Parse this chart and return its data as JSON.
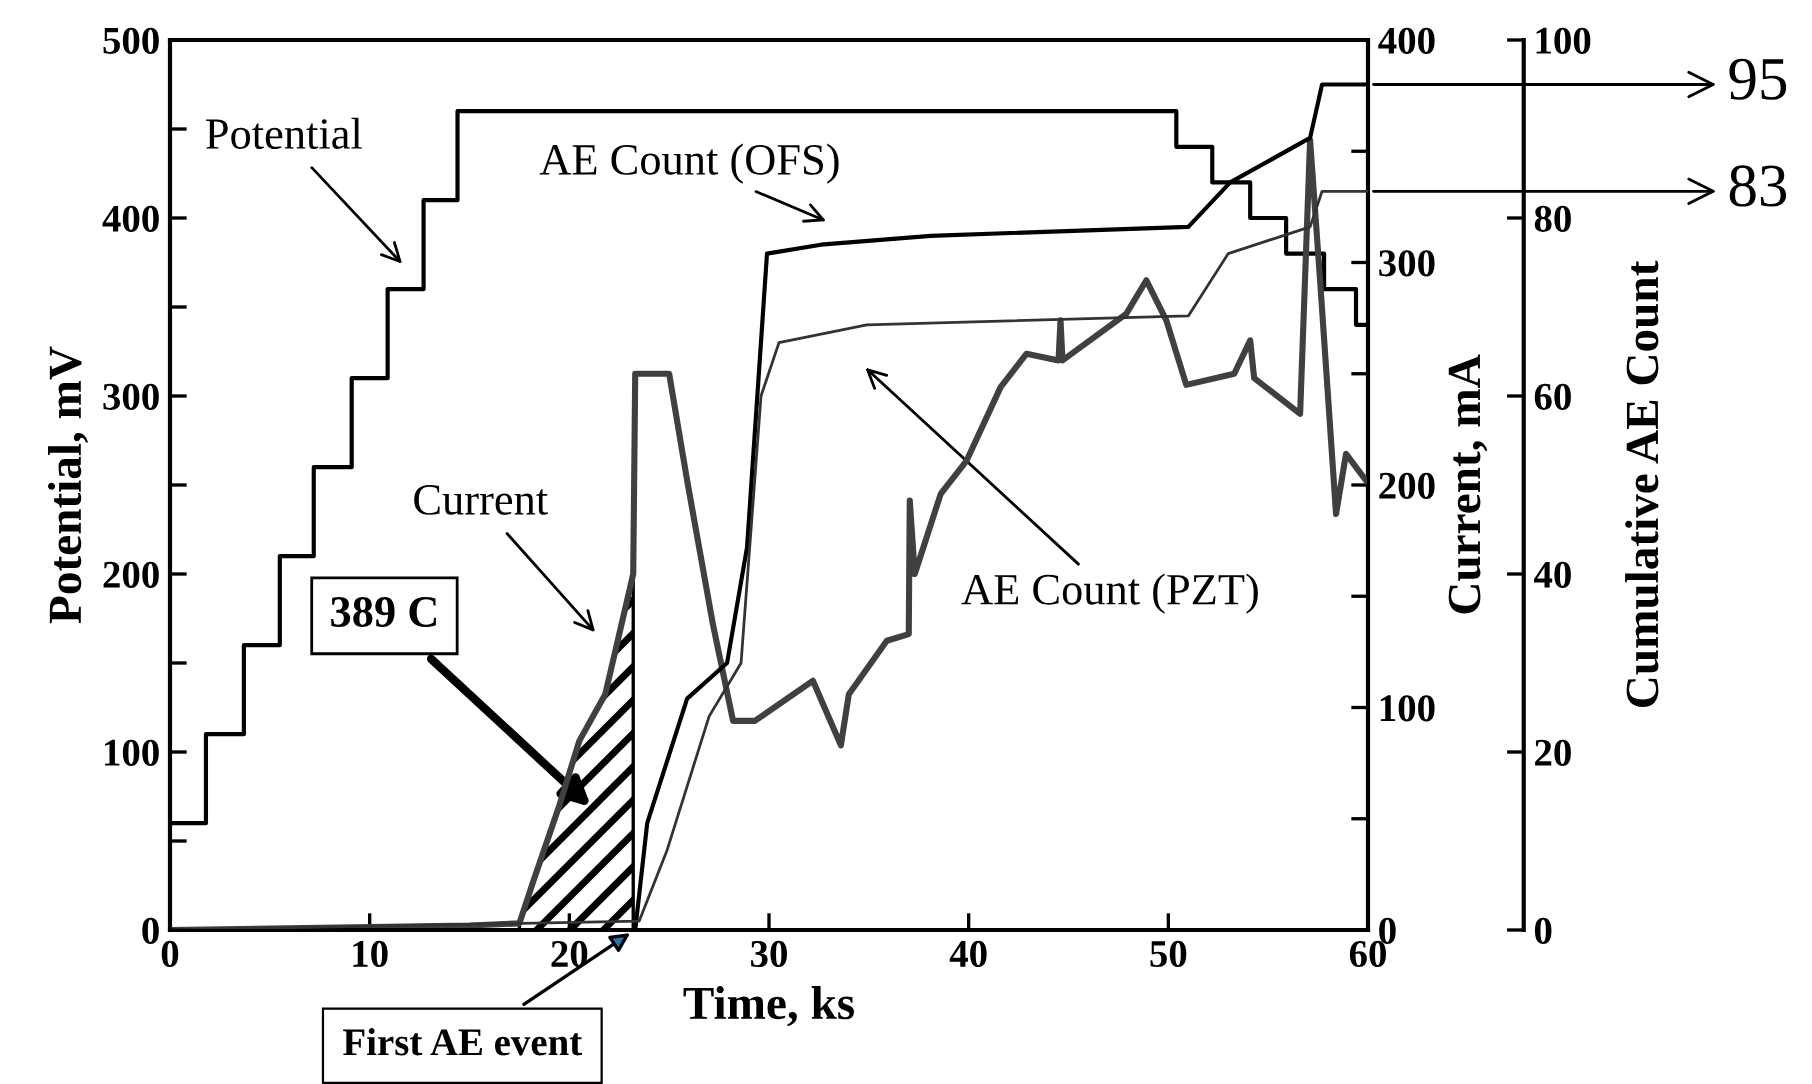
{
  "chart_data": {
    "type": "line",
    "xlabel": "Time, ks",
    "ylabel": "Potential, mV",
    "y2label": "Current, mA",
    "y3label": "Cumulative AE Count",
    "xlim": [
      0,
      60
    ],
    "xticks": [
      0,
      10,
      20,
      30,
      40,
      50,
      60
    ],
    "ylim": [
      0,
      500
    ],
    "yticks": [
      0,
      {
        "value": 50,
        "label": null
      },
      100,
      {
        "value": 150,
        "label": null
      },
      200,
      {
        "value": 250,
        "label": null
      },
      300,
      {
        "value": 350,
        "label": null
      },
      400,
      {
        "value": 450,
        "label": null
      },
      500
    ],
    "y2lim": [
      0,
      400
    ],
    "y2ticks": [
      0,
      {
        "value": 50,
        "label": null
      },
      100,
      {
        "value": 150,
        "label": null
      },
      200,
      {
        "value": 250,
        "label": null
      },
      300,
      {
        "value": 350,
        "label": null
      },
      400
    ],
    "y3lim": [
      0,
      100
    ],
    "y3ticks": [
      0,
      20,
      40,
      60,
      80,
      100
    ],
    "grid": false,
    "legend": false,
    "line_style": "solid",
    "marker": "none",
    "series": [
      {
        "type": "step",
        "color": "#000000",
        "x": [
          0,
          1.8,
          3.7,
          5.5,
          7.2,
          9.1,
          10.9,
          12.7,
          14.4,
          50.4,
          52.2,
          54.1,
          55.9,
          57.8,
          59.4,
          60
        ],
        "values": [
          60,
          110,
          160,
          210,
          260,
          310,
          360,
          410,
          460,
          440,
          420,
          400,
          380,
          360,
          340,
          340
        ]
      },
      {
        "axis": "y2",
        "color": "#404040",
        "x": [
          0,
          15,
          17.5,
          18.2,
          19.5,
          20.5,
          21.8,
          23.2,
          23.3,
          25.0,
          25.9,
          27.2,
          28.2,
          29.3,
          32.2,
          33.6,
          34.0,
          35.9,
          37.0,
          37.05,
          37.3,
          38.6,
          39.9,
          41.6,
          42.9,
          44.5,
          44.6,
          44.7,
          47.9,
          48.9,
          49.9,
          50.9,
          53.3,
          54.1,
          54.3,
          56.6,
          57.1,
          57.6,
          58.4,
          58.9,
          59.9
        ],
        "values": [
          0,
          2,
          3,
          22,
          56,
          85,
          106,
          160,
          250,
          250,
          202,
          137,
          94,
          94,
          112,
          83,
          106,
          130,
          133,
          193,
          160,
          196,
          211,
          244,
          259,
          256,
          274,
          256,
          277,
          292,
          274,
          245,
          250,
          265,
          248,
          232,
          355,
          292,
          187,
          214,
          202
        ]
      },
      {
        "axis": "y3",
        "color": "#000000",
        "x": [
          0,
          23.3,
          23.9,
          25.9,
          27.9,
          28.9,
          29.9,
          32.6,
          38.1,
          51.0,
          53.1,
          57.1,
          57.7,
          60
        ],
        "values": [
          0,
          0,
          12,
          26,
          30,
          43,
          76,
          77,
          78,
          79,
          84,
          89,
          95,
          95
        ]
      },
      {
        "axis": "y3",
        "color": "#333333",
        "x": [
          0,
          23.5,
          24.9,
          27.0,
          28.6,
          29.6,
          30.5,
          34.9,
          51.0,
          53.0,
          57.1,
          57.7,
          60
        ],
        "values": [
          0,
          1,
          9,
          24,
          30,
          60,
          66,
          68,
          69,
          76,
          79,
          83,
          83
        ]
      },
      {
        "type": "area",
        "axis": "y2",
        "color": "#000000",
        "x": [
          17.5,
          18.2,
          19.5,
          20.5,
          21.8,
          23.2
        ],
        "values": [
          3,
          22,
          56,
          85,
          106,
          160
        ]
      }
    ],
    "annotations": [
      "Potential",
      "Current",
      "AE Count (OFS)",
      "AE Count (PZT)",
      "389 C",
      "First AE event",
      "95",
      "83"
    ]
  }
}
